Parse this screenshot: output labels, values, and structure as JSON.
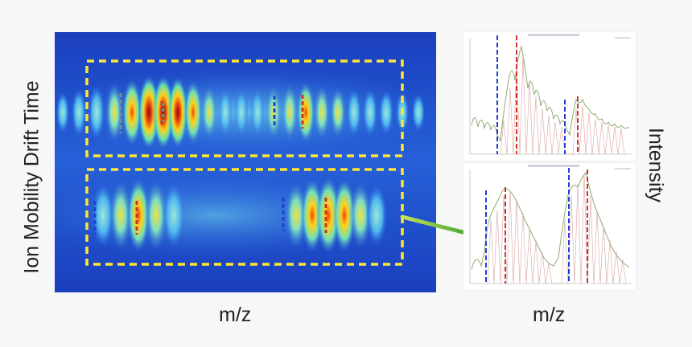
{
  "labels": {
    "y_axis": "Ion Mobility Drift Time",
    "x_axis_left": "m/z",
    "x_axis_right": "m/z",
    "right_axis": "Intensity"
  },
  "colors": {
    "heatmap_bg": "#1e4fd0",
    "dashed_box": "#ffe633",
    "connector": "#6fb52c",
    "marker_blue": "#1f3fd6",
    "marker_red": "#d2302a",
    "trace_green": "#8faa72"
  }
}
